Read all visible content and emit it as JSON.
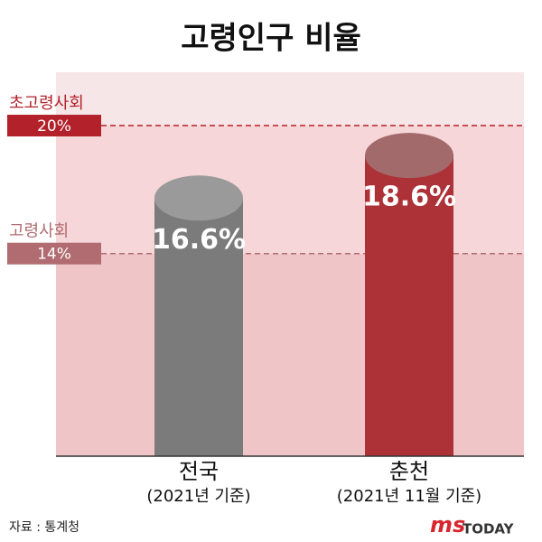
{
  "chart_data": {
    "type": "bar",
    "title": "고령인구 비율",
    "categories": [
      "전국",
      "춘천"
    ],
    "category_notes": [
      "(2021년 기준)",
      "(2021년 11월 기준)"
    ],
    "values": [
      16.6,
      18.6
    ],
    "value_labels": [
      "16.6%",
      "18.6%"
    ],
    "colors": [
      "#7b7b7b",
      "#ad3238"
    ],
    "ylim": [
      4.5,
      22.5
    ],
    "thresholds": [
      {
        "name": "초고령사회",
        "value": 20,
        "label": "20%",
        "color": "#b3222b"
      },
      {
        "name": "고령사회",
        "value": 14,
        "label": "14%",
        "color": "#b06c70"
      }
    ]
  },
  "source": "자료 : 통계청",
  "logo": {
    "mark": "ms",
    "name": "TODAY"
  }
}
